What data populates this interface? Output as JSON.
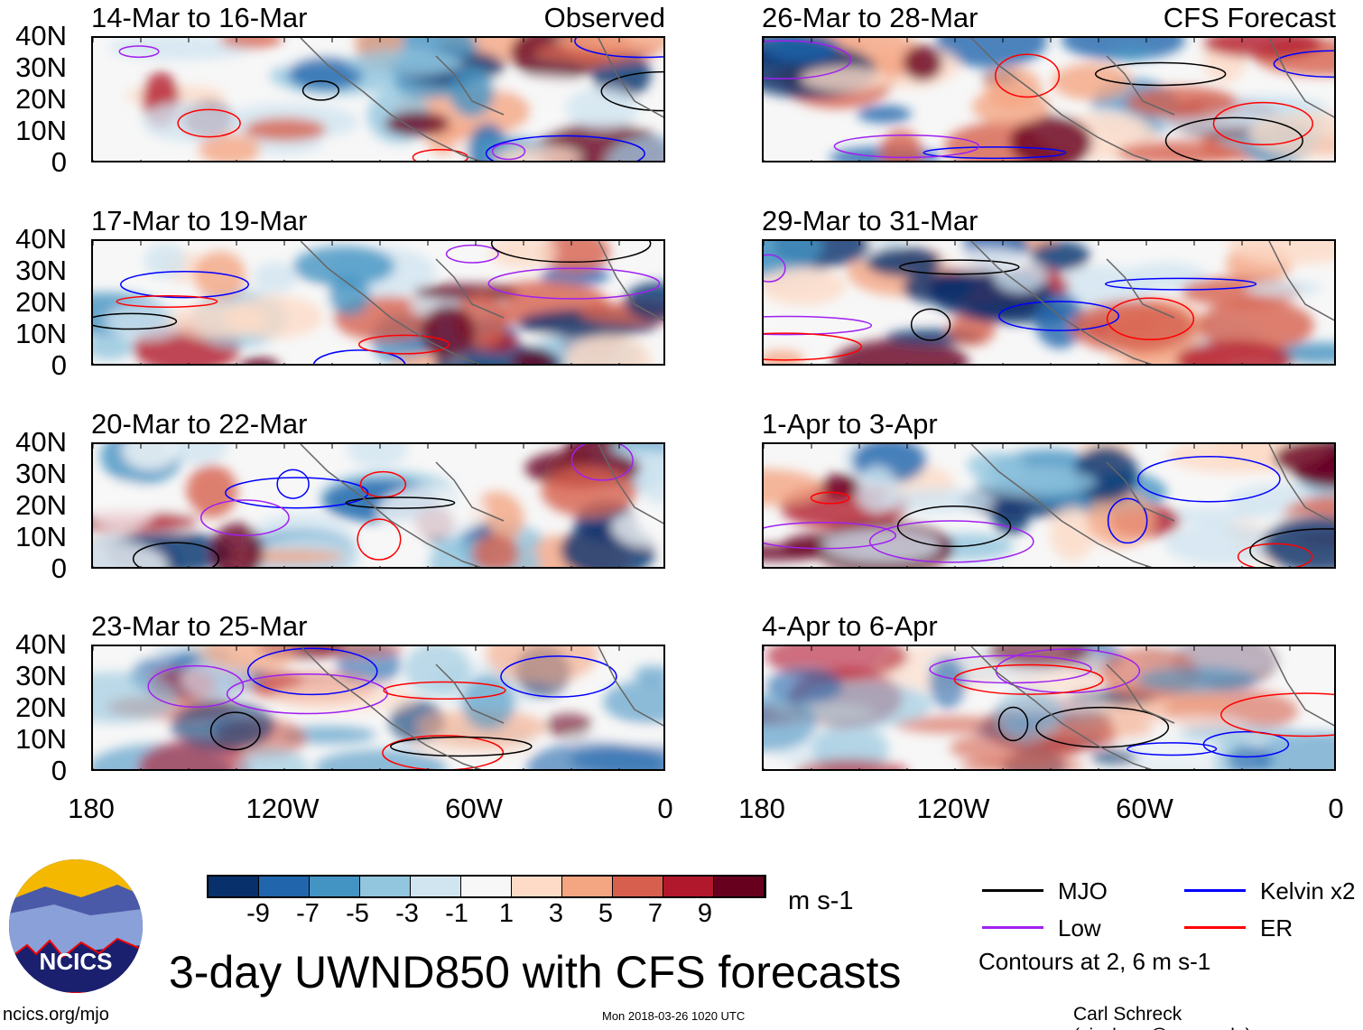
{
  "panels": [
    {
      "title": "14-Mar to 16-Mar",
      "label": "Observed"
    },
    {
      "title": "26-Mar to 28-Mar",
      "label": "CFS Forecast"
    },
    {
      "title": "17-Mar to 19-Mar"
    },
    {
      "title": "29-Mar to 31-Mar"
    },
    {
      "title": "20-Mar to 22-Mar"
    },
    {
      "title": "1-Apr to 3-Apr"
    },
    {
      "title": "23-Mar to 25-Mar"
    },
    {
      "title": "4-Apr to 6-Apr"
    }
  ],
  "y_ticks": [
    "40N",
    "30N",
    "20N",
    "10N",
    "0"
  ],
  "x_ticks": [
    "180",
    "120W",
    "60W",
    "0"
  ],
  "colorbar": {
    "colors": [
      "#08306b",
      "#2166ac",
      "#4393c3",
      "#92c5de",
      "#d1e5f0",
      "#f7f7f7",
      "#fddbc7",
      "#f4a582",
      "#d6604d",
      "#b2182b",
      "#67001f"
    ],
    "labels": [
      "-9",
      "-7",
      "-5",
      "-3",
      "-1",
      "1",
      "3",
      "5",
      "7",
      "9"
    ],
    "units": "m s-1"
  },
  "legend": {
    "items": [
      {
        "label": "MJO",
        "color": "#000000"
      },
      {
        "label": "Kelvin x2",
        "color": "#0000ff"
      },
      {
        "label": "Low",
        "color": "#a020f0"
      },
      {
        "label": "ER",
        "color": "#ff0000"
      }
    ],
    "note": "Contours at 2, 6 m s-1"
  },
  "logo": "NCICS",
  "title": "3-day UWND850 with CFS forecasts",
  "footer": {
    "left": "ncics.org/mjo",
    "center": "Mon 2018-03-26 1020 UTC",
    "right": "Carl Schreck (cjschrec@ncsu.edu)"
  }
}
